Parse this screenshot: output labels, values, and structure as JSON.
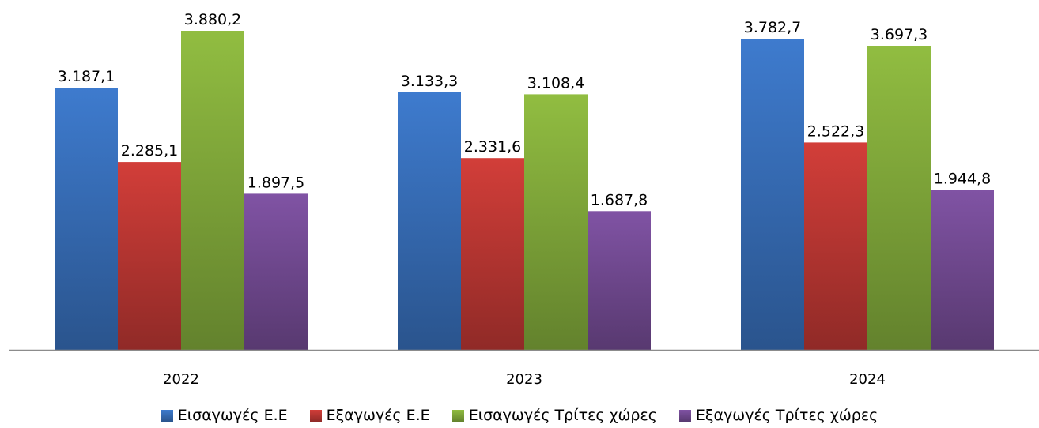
{
  "chart_data": {
    "type": "bar",
    "categories": [
      "2022",
      "2023",
      "2024"
    ],
    "series": [
      {
        "name": "Εισαγωγές Ε.Ε",
        "color": "#3B75C4",
        "values": [
          3187.1,
          3133.3,
          3782.7
        ],
        "labels": [
          "3.187,1",
          "3.133,3",
          "3.782,7"
        ]
      },
      {
        "name": "Εξαγωγές  Ε.Ε",
        "color": "#C83B36",
        "values": [
          2285.1,
          2331.6,
          2522.3
        ],
        "labels": [
          "2.285,1",
          "2.331,6",
          "2.522,3"
        ]
      },
      {
        "name": "Εισαγωγές Τρίτες χώρες",
        "color": "#8AB43E",
        "values": [
          3880.2,
          3108.4,
          3697.3
        ],
        "labels": [
          "3.880,2",
          "3.108,4",
          "3.697,3"
        ]
      },
      {
        "name": "Εξαγωγές Τρίτες χώρες",
        "color": "#7A4F9C",
        "values": [
          1897.5,
          1687.8,
          1944.8
        ],
        "labels": [
          "1.897,5",
          "1.687,8",
          "1.944,8"
        ]
      }
    ],
    "ylim": [
      0,
      4100
    ],
    "grid": false,
    "legend_position": "bottom",
    "title": "",
    "xlabel": "",
    "ylabel": ""
  }
}
